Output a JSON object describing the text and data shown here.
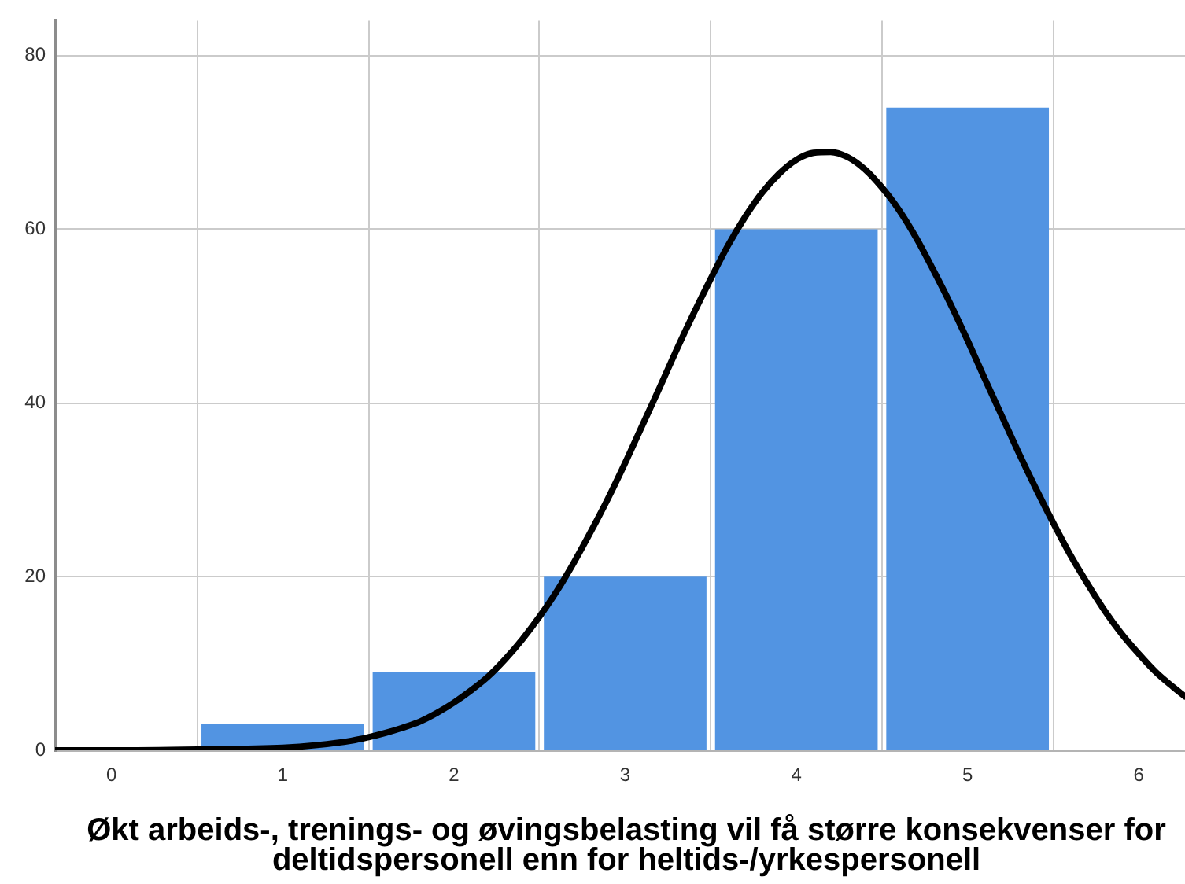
{
  "chart_data": {
    "type": "histogram",
    "xlabel": "Økt arbeids-, trenings- og øvingsbelasting vil få større konsekvenser for deltidspersonell enn for heltids-/yrkespersonell",
    "bins": [
      0.5,
      1.5,
      2.5,
      3.5,
      4.5,
      5.5
    ],
    "series": [
      {
        "type": "histogram",
        "color": "#5294e2",
        "values": [
          3,
          9,
          20,
          60,
          74
        ]
      },
      {
        "type": "line",
        "color": "#000000",
        "x": [
          -0.33,
          0,
          0.5,
          1,
          1.2,
          1.4,
          1.5,
          1.6,
          1.7,
          1.8,
          1.9,
          2,
          2.1,
          2.2,
          2.3,
          2.4,
          2.5,
          2.6,
          2.7,
          2.8,
          2.9,
          3,
          3.1,
          3.2,
          3.3,
          3.4,
          3.5,
          3.6,
          3.7,
          3.8,
          3.9,
          4,
          4.1,
          4.2,
          4.3,
          4.4,
          4.5,
          4.6,
          4.7,
          4.8,
          4.9,
          5,
          5.1,
          5.2,
          5.3,
          5.4,
          5.5,
          5.6,
          5.7,
          5.8,
          5.9,
          6,
          6.1,
          6.2,
          6.27
        ],
        "values": [
          0,
          0,
          0.1,
          0.3,
          0.6,
          1.1,
          1.5,
          2,
          2.6,
          3.3,
          4.3,
          5.5,
          6.9,
          8.5,
          10.5,
          12.8,
          15.4,
          18.3,
          21.6,
          25.2,
          29,
          33.1,
          37.4,
          41.7,
          46.1,
          50.3,
          54.3,
          58.1,
          61.4,
          64.2,
          66.4,
          68,
          68.8,
          68.9,
          68.3,
          66.9,
          64.8,
          62.2,
          59,
          55.3,
          51.4,
          47.2,
          42.8,
          38.5,
          34.2,
          30.1,
          26.2,
          22.5,
          19.2,
          16.1,
          13.4,
          11.1,
          9,
          7.3,
          6.2
        ]
      }
    ],
    "xlim": [
      -0.33,
      6.27
    ],
    "xticks": [
      0,
      1,
      2,
      3,
      4,
      5,
      6
    ],
    "ylim": [
      0,
      84
    ],
    "yticks": [
      0,
      20,
      40,
      60,
      80
    ],
    "grid": true,
    "marker": "none"
  }
}
